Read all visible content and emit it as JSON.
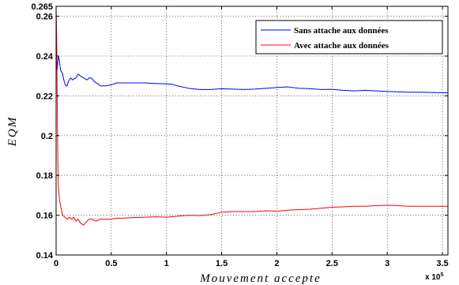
{
  "chart_data": {
    "type": "line",
    "title": "",
    "xlabel": "Mouvement accepte",
    "ylabel": "EQM",
    "x_multiplier_label": "x 10",
    "x_multiplier_exponent": "5",
    "xlim": [
      0,
      3.55
    ],
    "ylim": [
      0.14,
      0.265
    ],
    "x_ticks": [
      0,
      0.5,
      1,
      1.5,
      2,
      2.5,
      3,
      3.5
    ],
    "x_tick_labels": [
      "0",
      "0.5",
      "1",
      "1.5",
      "2",
      "2.5",
      "3",
      "3.5"
    ],
    "y_ticks": [
      0.14,
      0.16,
      0.18,
      0.2,
      0.22,
      0.24,
      0.26,
      0.265
    ],
    "y_tick_labels": [
      "0.14",
      "0.16",
      "0.18",
      "0.2",
      "0.22",
      "0.24",
      "0.26",
      "0.265"
    ],
    "grid": true,
    "legend_position": "top-right",
    "series": [
      {
        "name": "Sans attache aux données",
        "color": "#0000ff",
        "x": [
          0,
          0.005,
          0.01,
          0.02,
          0.03,
          0.04,
          0.05,
          0.06,
          0.07,
          0.08,
          0.09,
          0.1,
          0.11,
          0.13,
          0.15,
          0.18,
          0.2,
          0.22,
          0.25,
          0.28,
          0.3,
          0.32,
          0.35,
          0.38,
          0.4,
          0.43,
          0.45,
          0.5,
          0.55,
          0.6,
          0.7,
          0.8,
          0.9,
          1.0,
          1.05,
          1.1,
          1.2,
          1.3,
          1.4,
          1.5,
          1.6,
          1.7,
          1.8,
          1.9,
          2.0,
          2.1,
          2.2,
          2.3,
          2.4,
          2.5,
          2.6,
          2.7,
          2.8,
          2.9,
          3.0,
          3.1,
          3.2,
          3.3,
          3.4,
          3.55
        ],
        "y": [
          0.262,
          0.24,
          0.233,
          0.24,
          0.238,
          0.233,
          0.232,
          0.231,
          0.228,
          0.226,
          0.225,
          0.225,
          0.227,
          0.229,
          0.228,
          0.229,
          0.231,
          0.23,
          0.229,
          0.228,
          0.229,
          0.229,
          0.227,
          0.226,
          0.225,
          0.225,
          0.225,
          0.2255,
          0.2265,
          0.2265,
          0.2265,
          0.2265,
          0.2262,
          0.226,
          0.2258,
          0.225,
          0.2238,
          0.2232,
          0.2232,
          0.2236,
          0.2234,
          0.2232,
          0.2234,
          0.2238,
          0.2242,
          0.2245,
          0.2238,
          0.2236,
          0.2232,
          0.2233,
          0.2228,
          0.2225,
          0.2228,
          0.2225,
          0.2222,
          0.222,
          0.2218,
          0.2218,
          0.2217,
          0.2215
        ]
      },
      {
        "name": "Avec attache aux données",
        "color": "#ff0000",
        "x": [
          0,
          0.005,
          0.01,
          0.015,
          0.02,
          0.03,
          0.04,
          0.05,
          0.06,
          0.08,
          0.1,
          0.12,
          0.14,
          0.16,
          0.18,
          0.2,
          0.22,
          0.25,
          0.28,
          0.3,
          0.33,
          0.36,
          0.4,
          0.45,
          0.5,
          0.55,
          0.6,
          0.7,
          0.8,
          0.9,
          1.0,
          1.1,
          1.2,
          1.3,
          1.4,
          1.5,
          1.6,
          1.7,
          1.8,
          1.9,
          2.0,
          2.1,
          2.2,
          2.3,
          2.4,
          2.5,
          2.6,
          2.7,
          2.8,
          2.9,
          3.0,
          3.1,
          3.2,
          3.3,
          3.4,
          3.55
        ],
        "y": [
          0.265,
          0.25,
          0.22,
          0.19,
          0.175,
          0.168,
          0.165,
          0.162,
          0.16,
          0.159,
          0.158,
          0.159,
          0.158,
          0.159,
          0.157,
          0.158,
          0.156,
          0.155,
          0.157,
          0.158,
          0.158,
          0.157,
          0.158,
          0.158,
          0.158,
          0.1585,
          0.1585,
          0.1588,
          0.159,
          0.1592,
          0.159,
          0.1595,
          0.16,
          0.1598,
          0.1603,
          0.1615,
          0.1618,
          0.1618,
          0.1618,
          0.1622,
          0.162,
          0.1625,
          0.1628,
          0.163,
          0.1635,
          0.164,
          0.1642,
          0.1645,
          0.1645,
          0.1648,
          0.165,
          0.1648,
          0.1645,
          0.1645,
          0.1645,
          0.1645
        ]
      }
    ]
  }
}
